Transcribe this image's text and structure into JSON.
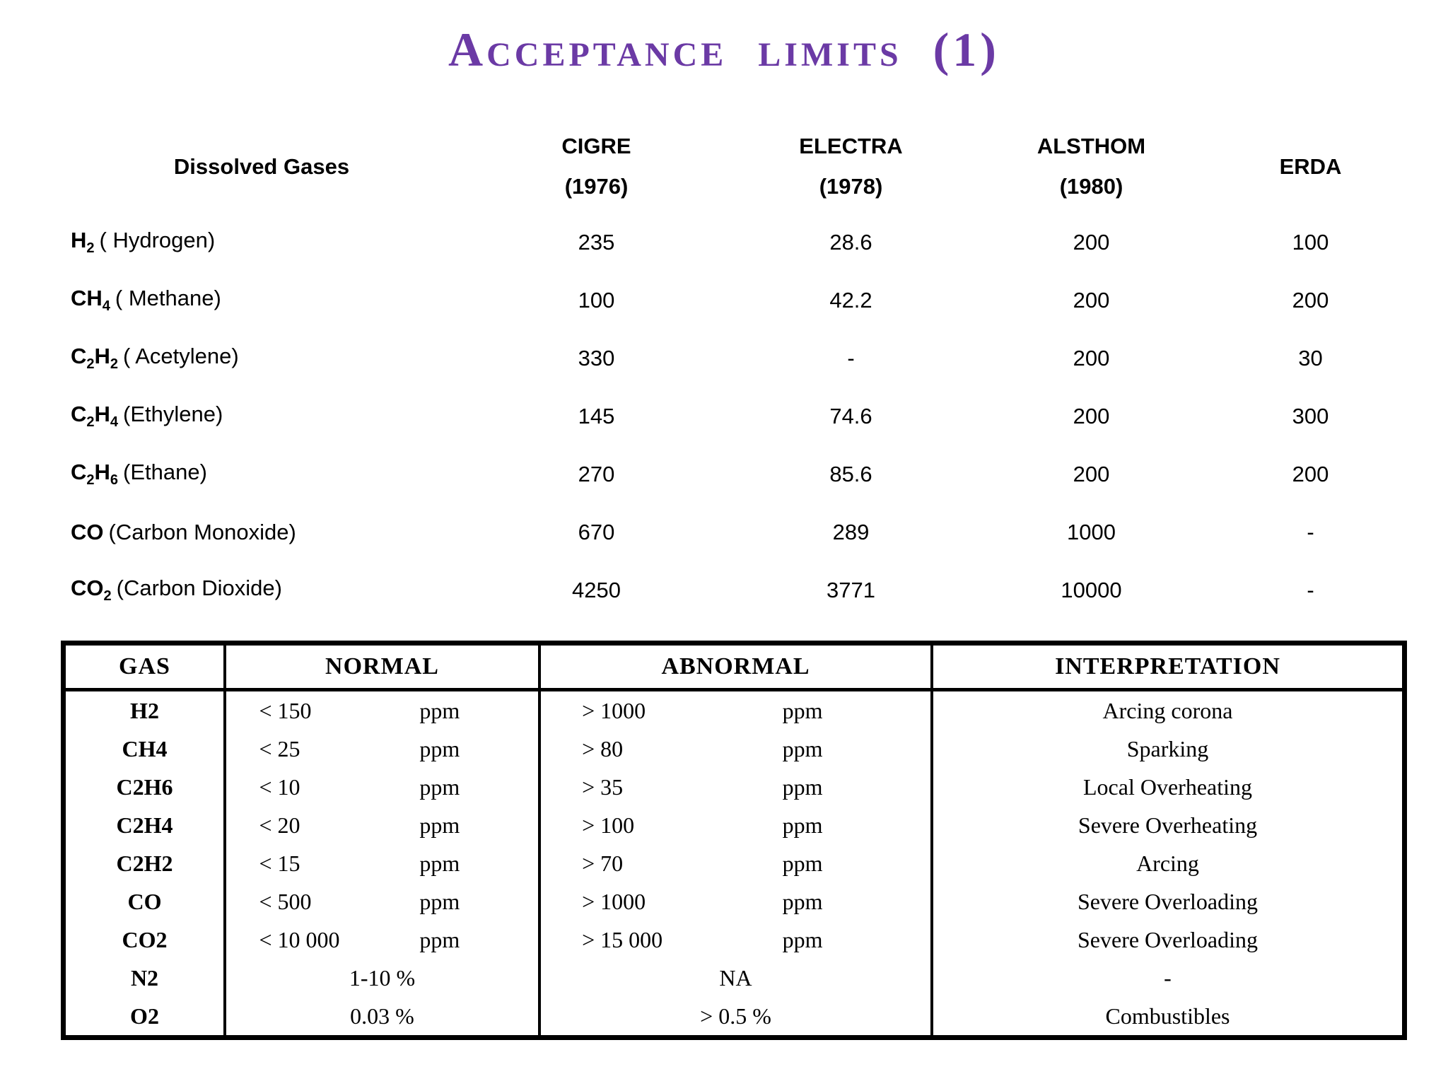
{
  "title": "Acceptance limits (1)",
  "colors": {
    "title_purple": "#6b3aa5",
    "text": "#000000",
    "table_border": "#000000"
  },
  "table1": {
    "col_headers": [
      {
        "line1": "Dissolved Gases",
        "line2": ""
      },
      {
        "line1": "CIGRE",
        "line2": "(1976)"
      },
      {
        "line1": "ELECTRA",
        "line2": "(1978)"
      },
      {
        "line1": "ALSTHOM",
        "line2": "(1980)"
      },
      {
        "line1": "ERDA",
        "line2": ""
      }
    ],
    "rows": [
      {
        "formula": [
          {
            "t": "H",
            "s": "2"
          }
        ],
        "name": "( Hydrogen)",
        "values": [
          "235",
          "28.6",
          "200",
          "100"
        ]
      },
      {
        "formula": [
          {
            "t": "CH",
            "s": "4"
          }
        ],
        "name": "( Methane)",
        "values": [
          "100",
          "42.2",
          "200",
          "200"
        ]
      },
      {
        "formula": [
          {
            "t": "C",
            "s": "2"
          },
          {
            "t": "H",
            "s": "2"
          }
        ],
        "name": "( Acetylene)",
        "values": [
          "330",
          "-",
          "200",
          "30"
        ]
      },
      {
        "formula": [
          {
            "t": "C",
            "s": "2"
          },
          {
            "t": "H",
            "s": "4"
          }
        ],
        "name": "(Ethylene)",
        "values": [
          "145",
          "74.6",
          "200",
          "300"
        ]
      },
      {
        "formula": [
          {
            "t": "C",
            "s": "2"
          },
          {
            "t": "H",
            "s": "6"
          }
        ],
        "name": "(Ethane)",
        "values": [
          "270",
          "85.6",
          "200",
          "200"
        ]
      },
      {
        "formula": [
          {
            "t": "CO",
            "s": ""
          }
        ],
        "name": "(Carbon Monoxide)",
        "values": [
          "670",
          "289",
          "1000",
          "-"
        ]
      },
      {
        "formula": [
          {
            "t": "CO",
            "s": "2"
          }
        ],
        "name": "(Carbon Dioxide)",
        "values": [
          "4250",
          "3771",
          "10000",
          "-"
        ]
      }
    ]
  },
  "table2": {
    "headers": [
      "GAS",
      "NORMAL",
      "ABNORMAL",
      "INTERPRETATION"
    ],
    "rows": [
      {
        "gas": "H2",
        "normal": {
          "v": "< 150",
          "u": "ppm"
        },
        "abnormal": {
          "v": "> 1000",
          "u": "ppm"
        },
        "interp": "Arcing corona"
      },
      {
        "gas": "CH4",
        "normal": {
          "v": "< 25",
          "u": "ppm"
        },
        "abnormal": {
          "v": "> 80",
          "u": "ppm"
        },
        "interp": "Sparking"
      },
      {
        "gas": "C2H6",
        "normal": {
          "v": "< 10",
          "u": "ppm"
        },
        "abnormal": {
          "v": "> 35",
          "u": "ppm"
        },
        "interp": "Local Overheating"
      },
      {
        "gas": "C2H4",
        "normal": {
          "v": "< 20",
          "u": "ppm"
        },
        "abnormal": {
          "v": "> 100",
          "u": "ppm"
        },
        "interp": "Severe Overheating"
      },
      {
        "gas": "C2H2",
        "normal": {
          "v": "< 15",
          "u": "ppm"
        },
        "abnormal": {
          "v": "> 70",
          "u": "ppm"
        },
        "interp": "Arcing"
      },
      {
        "gas": "CO",
        "normal": {
          "v": "< 500",
          "u": "ppm"
        },
        "abnormal": {
          "v": "> 1000",
          "u": "ppm"
        },
        "interp": "Severe Overloading"
      },
      {
        "gas": "CO2",
        "normal": {
          "v": "< 10 000",
          "u": "ppm"
        },
        "abnormal": {
          "v": "> 15 000",
          "u": "ppm"
        },
        "interp": "Severe Overloading"
      },
      {
        "gas": "N2",
        "normal": {
          "v": "1-10 %",
          "u": ""
        },
        "abnormal": {
          "v": "NA",
          "u": ""
        },
        "interp": "-"
      },
      {
        "gas": "O2",
        "normal": {
          "v": "0.03 %",
          "u": ""
        },
        "abnormal": {
          "v": "> 0.5 %",
          "u": ""
        },
        "interp": "Combustibles"
      }
    ]
  }
}
